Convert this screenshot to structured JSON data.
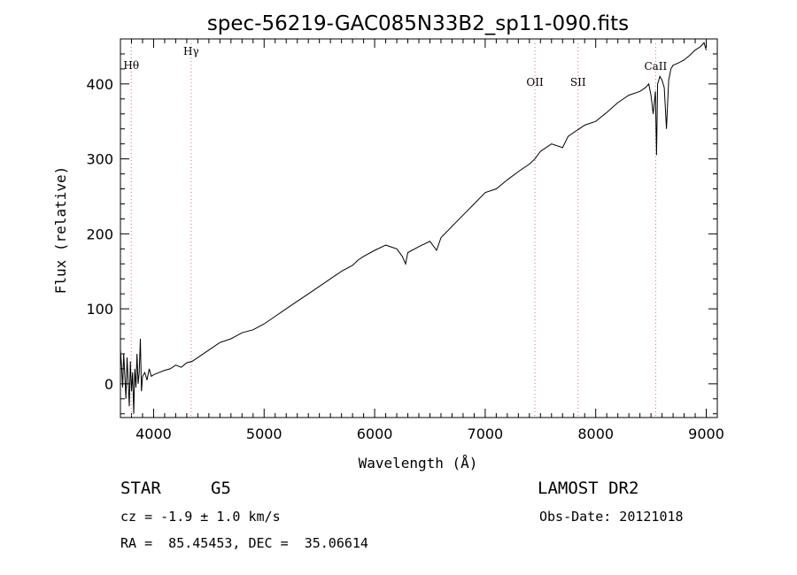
{
  "chart_data": {
    "type": "line",
    "title": "spec-56219-GAC085N33B2_sp11-090.fits",
    "xlabel": "Wavelength (Å)",
    "ylabel": "Flux (relative)",
    "xlim": [
      3700,
      9100
    ],
    "ylim": [
      -45,
      460
    ],
    "x_ticks": [
      4000,
      5000,
      6000,
      7000,
      8000,
      9000
    ],
    "y_ticks": [
      0,
      100,
      200,
      300,
      400
    ],
    "grid": false,
    "line_color": "#000000",
    "marker_line_color": "#c87878",
    "series": [
      {
        "x": [
          3700,
          3710,
          3720,
          3730,
          3740,
          3750,
          3760,
          3770,
          3780,
          3790,
          3800,
          3810,
          3820,
          3830,
          3840,
          3850,
          3860,
          3870,
          3880,
          3890,
          3900,
          3920,
          3940,
          3960,
          3980,
          4000,
          4050,
          4100,
          4150,
          4200,
          4250,
          4300,
          4350,
          4400,
          4500,
          4600,
          4700,
          4800,
          4900,
          5000,
          5100,
          5200,
          5300,
          5400,
          5500,
          5600,
          5700,
          5800,
          5850,
          5900,
          6000,
          6100,
          6200,
          6250,
          6280,
          6300,
          6400,
          6500,
          6560,
          6600,
          6700,
          6800,
          6900,
          7000,
          7100,
          7200,
          7300,
          7400,
          7450,
          7500,
          7600,
          7700,
          7750,
          7800,
          7850,
          7900,
          8000,
          8100,
          8200,
          8300,
          8400,
          8450,
          8480,
          8500,
          8520,
          8540,
          8550,
          8560,
          8580,
          8600,
          8620,
          8640,
          8660,
          8680,
          8700,
          8750,
          8800,
          8850,
          8900,
          8950,
          8980,
          9000
        ],
        "y": [
          45,
          25,
          -5,
          40,
          10,
          -20,
          35,
          5,
          -30,
          30,
          -10,
          15,
          -40,
          20,
          -5,
          40,
          0,
          15,
          60,
          -10,
          10,
          15,
          5,
          20,
          10,
          12,
          15,
          18,
          20,
          25,
          22,
          28,
          30,
          35,
          45,
          55,
          60,
          68,
          72,
          80,
          90,
          100,
          110,
          120,
          130,
          140,
          150,
          158,
          165,
          170,
          178,
          185,
          180,
          170,
          160,
          175,
          183,
          190,
          178,
          195,
          210,
          225,
          240,
          255,
          260,
          272,
          283,
          293,
          300,
          310,
          320,
          315,
          330,
          335,
          340,
          345,
          350,
          362,
          375,
          385,
          390,
          395,
          400,
          385,
          360,
          390,
          305,
          400,
          410,
          405,
          395,
          340,
          405,
          420,
          425,
          428,
          432,
          438,
          445,
          450,
          455,
          445
        ]
      }
    ],
    "line_markers": [
      {
        "label": "Hθ",
        "x": 3798
      },
      {
        "label": "Hγ",
        "x": 4340
      },
      {
        "label": "OII",
        "x": 7450
      },
      {
        "label": "SII",
        "x": 7840
      },
      {
        "label": "CaII",
        "x": 8542
      }
    ]
  },
  "info": {
    "object_type": "STAR",
    "subclass": "G5",
    "survey": "LAMOST DR2",
    "redshift_text": "cz = -1.9 ± 1.0 km/s",
    "obs_date_text": "Obs-Date: 20121018",
    "coords_text": "RA =  85.45453, DEC =  35.06614"
  }
}
